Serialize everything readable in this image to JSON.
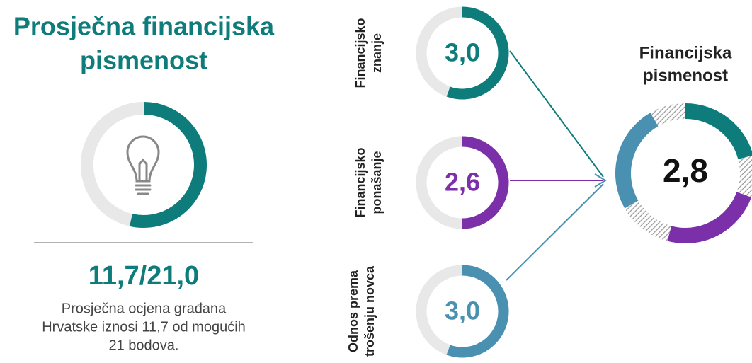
{
  "header": {
    "title_lines": [
      "Prosječna financijska",
      "pismenost"
    ]
  },
  "score": {
    "value": "11,7/21,0",
    "description_lines": [
      "Prosječna ocjena građana",
      "Hrvatske iznosi 11,7 od mogućih",
      "21 bodova."
    ]
  },
  "components": [
    {
      "label_lines": [
        "Financijsko",
        "znanje"
      ],
      "value": "3,0"
    },
    {
      "label_lines": [
        "Financijsko",
        "ponašanje"
      ],
      "value": "2,6"
    },
    {
      "label_lines": [
        "Odnos prema",
        "trošenju novca"
      ],
      "value": "3,0"
    }
  ],
  "result": {
    "label_lines": [
      "Financijska",
      "pismenost"
    ],
    "value": "2,8"
  }
}
